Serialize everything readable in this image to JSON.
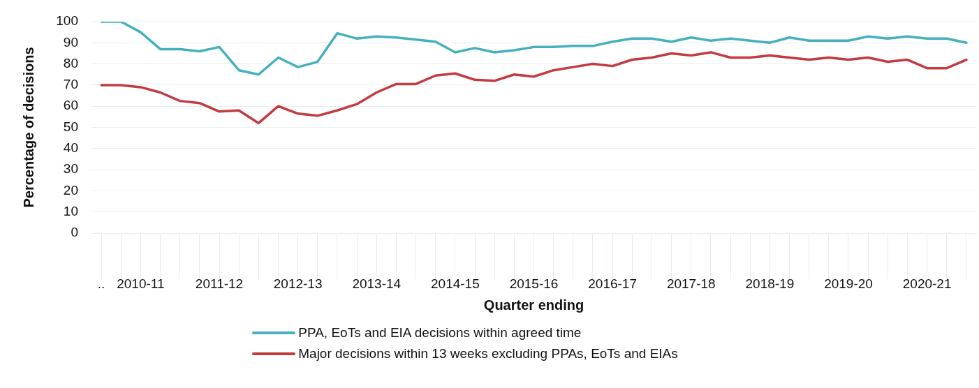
{
  "chart_data": {
    "type": "line",
    "xlabel": "Quarter ending",
    "ylabel": "Percentage of decisions",
    "categories": [
      "..",
      null,
      "2010-11",
      null,
      null,
      null,
      "2011-12",
      null,
      null,
      null,
      "2012-13",
      null,
      null,
      null,
      "2013-14",
      null,
      null,
      null,
      "2014-15",
      null,
      null,
      null,
      "2015-16",
      null,
      null,
      null,
      "2016-17",
      null,
      null,
      null,
      "2017-18",
      null,
      null,
      null,
      "2018-19",
      null,
      null,
      null,
      "2019-20",
      null,
      null,
      null,
      "2020-21",
      null,
      null
    ],
    "series": [
      {
        "name": "PPA, EoTs and EIA decisions within agreed time",
        "color": "#46b1bd",
        "values": [
          100,
          100,
          95,
          87,
          87,
          86,
          88,
          77,
          75,
          83,
          78.5,
          81,
          94.5,
          92,
          93,
          92.5,
          91.5,
          90.5,
          85.5,
          87.5,
          85.5,
          86.5,
          88,
          88,
          88.5,
          88.5,
          90.5,
          92,
          92,
          90.5,
          92.5,
          91,
          92,
          91,
          90,
          92.5,
          91,
          91,
          91,
          93,
          92,
          93,
          92,
          92,
          90
        ]
      },
      {
        "name": "Major decisions within 13 weeks excluding PPAs, EoTs and EIAs",
        "color": "#c33b3f",
        "values": [
          70,
          70,
          69,
          66.5,
          62.5,
          61.5,
          57.5,
          58,
          52,
          60,
          56.5,
          55.5,
          58,
          61,
          66.5,
          70.5,
          70.5,
          74.5,
          75.5,
          72.5,
          72,
          75,
          74,
          77,
          78.5,
          80,
          79,
          82,
          83,
          85,
          84,
          85.5,
          83,
          83,
          84,
          83,
          82,
          83,
          82,
          83,
          81,
          82,
          78,
          78,
          82
        ]
      }
    ],
    "ylim": [
      0,
      100
    ],
    "yticks": [
      0,
      10,
      20,
      30,
      40,
      50,
      60,
      70,
      80,
      90,
      100
    ],
    "grid": "y",
    "legend": "bottom",
    "marker": "none",
    "line_style": "solid"
  }
}
